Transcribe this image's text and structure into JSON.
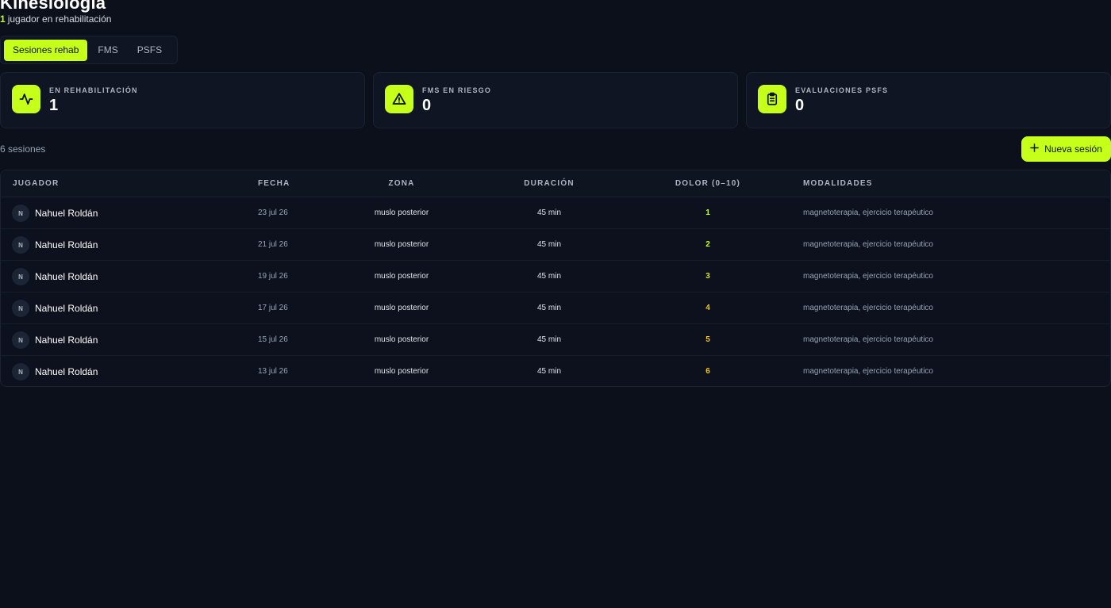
{
  "header": {
    "title": "Kinesiología",
    "subtitle_count": "1",
    "subtitle_text": "jugador en rehabilitación"
  },
  "tabs": [
    {
      "label": "Sesiones rehab",
      "active": true
    },
    {
      "label": "FMS",
      "active": false
    },
    {
      "label": "PSFS",
      "active": false
    }
  ],
  "stats": [
    {
      "label": "EN REHABILITACIÓN",
      "value": "1",
      "icon": "activity-icon"
    },
    {
      "label": "FMS EN RIESGO",
      "value": "0",
      "icon": "warning-icon"
    },
    {
      "label": "EVALUACIONES PSFS",
      "value": "0",
      "icon": "clipboard-icon"
    }
  ],
  "toolbar": {
    "sessions_count": "6 sesiones",
    "new_button_label": "Nueva sesión",
    "new_button_icon": "plus-icon"
  },
  "table": {
    "headers": {
      "jugador": "JUGADOR",
      "fecha": "FECHA",
      "zona": "ZONA",
      "duracion": "DURACIÓN",
      "dolor": "DOLOR (0–10)",
      "modalidades": "MODALIDADES"
    },
    "rows": [
      {
        "initial": "N",
        "player": "Nahuel Roldán",
        "fecha": "23 jul 26",
        "zona": "muslo posterior",
        "duracion": "45 min",
        "dolor": "1",
        "modalidades": "magnetoterapia, ejercicio terapéutico"
      },
      {
        "initial": "N",
        "player": "Nahuel Roldán",
        "fecha": "21 jul 26",
        "zona": "muslo posterior",
        "duracion": "45 min",
        "dolor": "2",
        "modalidades": "magnetoterapia, ejercicio terapéutico"
      },
      {
        "initial": "N",
        "player": "Nahuel Roldán",
        "fecha": "19 jul 26",
        "zona": "muslo posterior",
        "duracion": "45 min",
        "dolor": "3",
        "modalidades": "magnetoterapia, ejercicio terapéutico"
      },
      {
        "initial": "N",
        "player": "Nahuel Roldán",
        "fecha": "17 jul 26",
        "zona": "muslo posterior",
        "duracion": "45 min",
        "dolor": "4",
        "modalidades": "magnetoterapia, ejercicio terapéutico"
      },
      {
        "initial": "N",
        "player": "Nahuel Roldán",
        "fecha": "15 jul 26",
        "zona": "muslo posterior",
        "duracion": "45 min",
        "dolor": "5",
        "modalidades": "magnetoterapia, ejercicio terapéutico"
      },
      {
        "initial": "N",
        "player": "Nahuel Roldán",
        "fecha": "13 jul 26",
        "zona": "muslo posterior",
        "duracion": "45 min",
        "dolor": "6",
        "modalidades": "magnetoterapia, ejercicio terapéutico"
      }
    ]
  },
  "colors": {
    "accent": "#c6ff1a",
    "background": "#0b101b",
    "pain_low": "#c6ff1a",
    "pain_mid": "#d9e021",
    "pain_high": "#f5c518"
  }
}
